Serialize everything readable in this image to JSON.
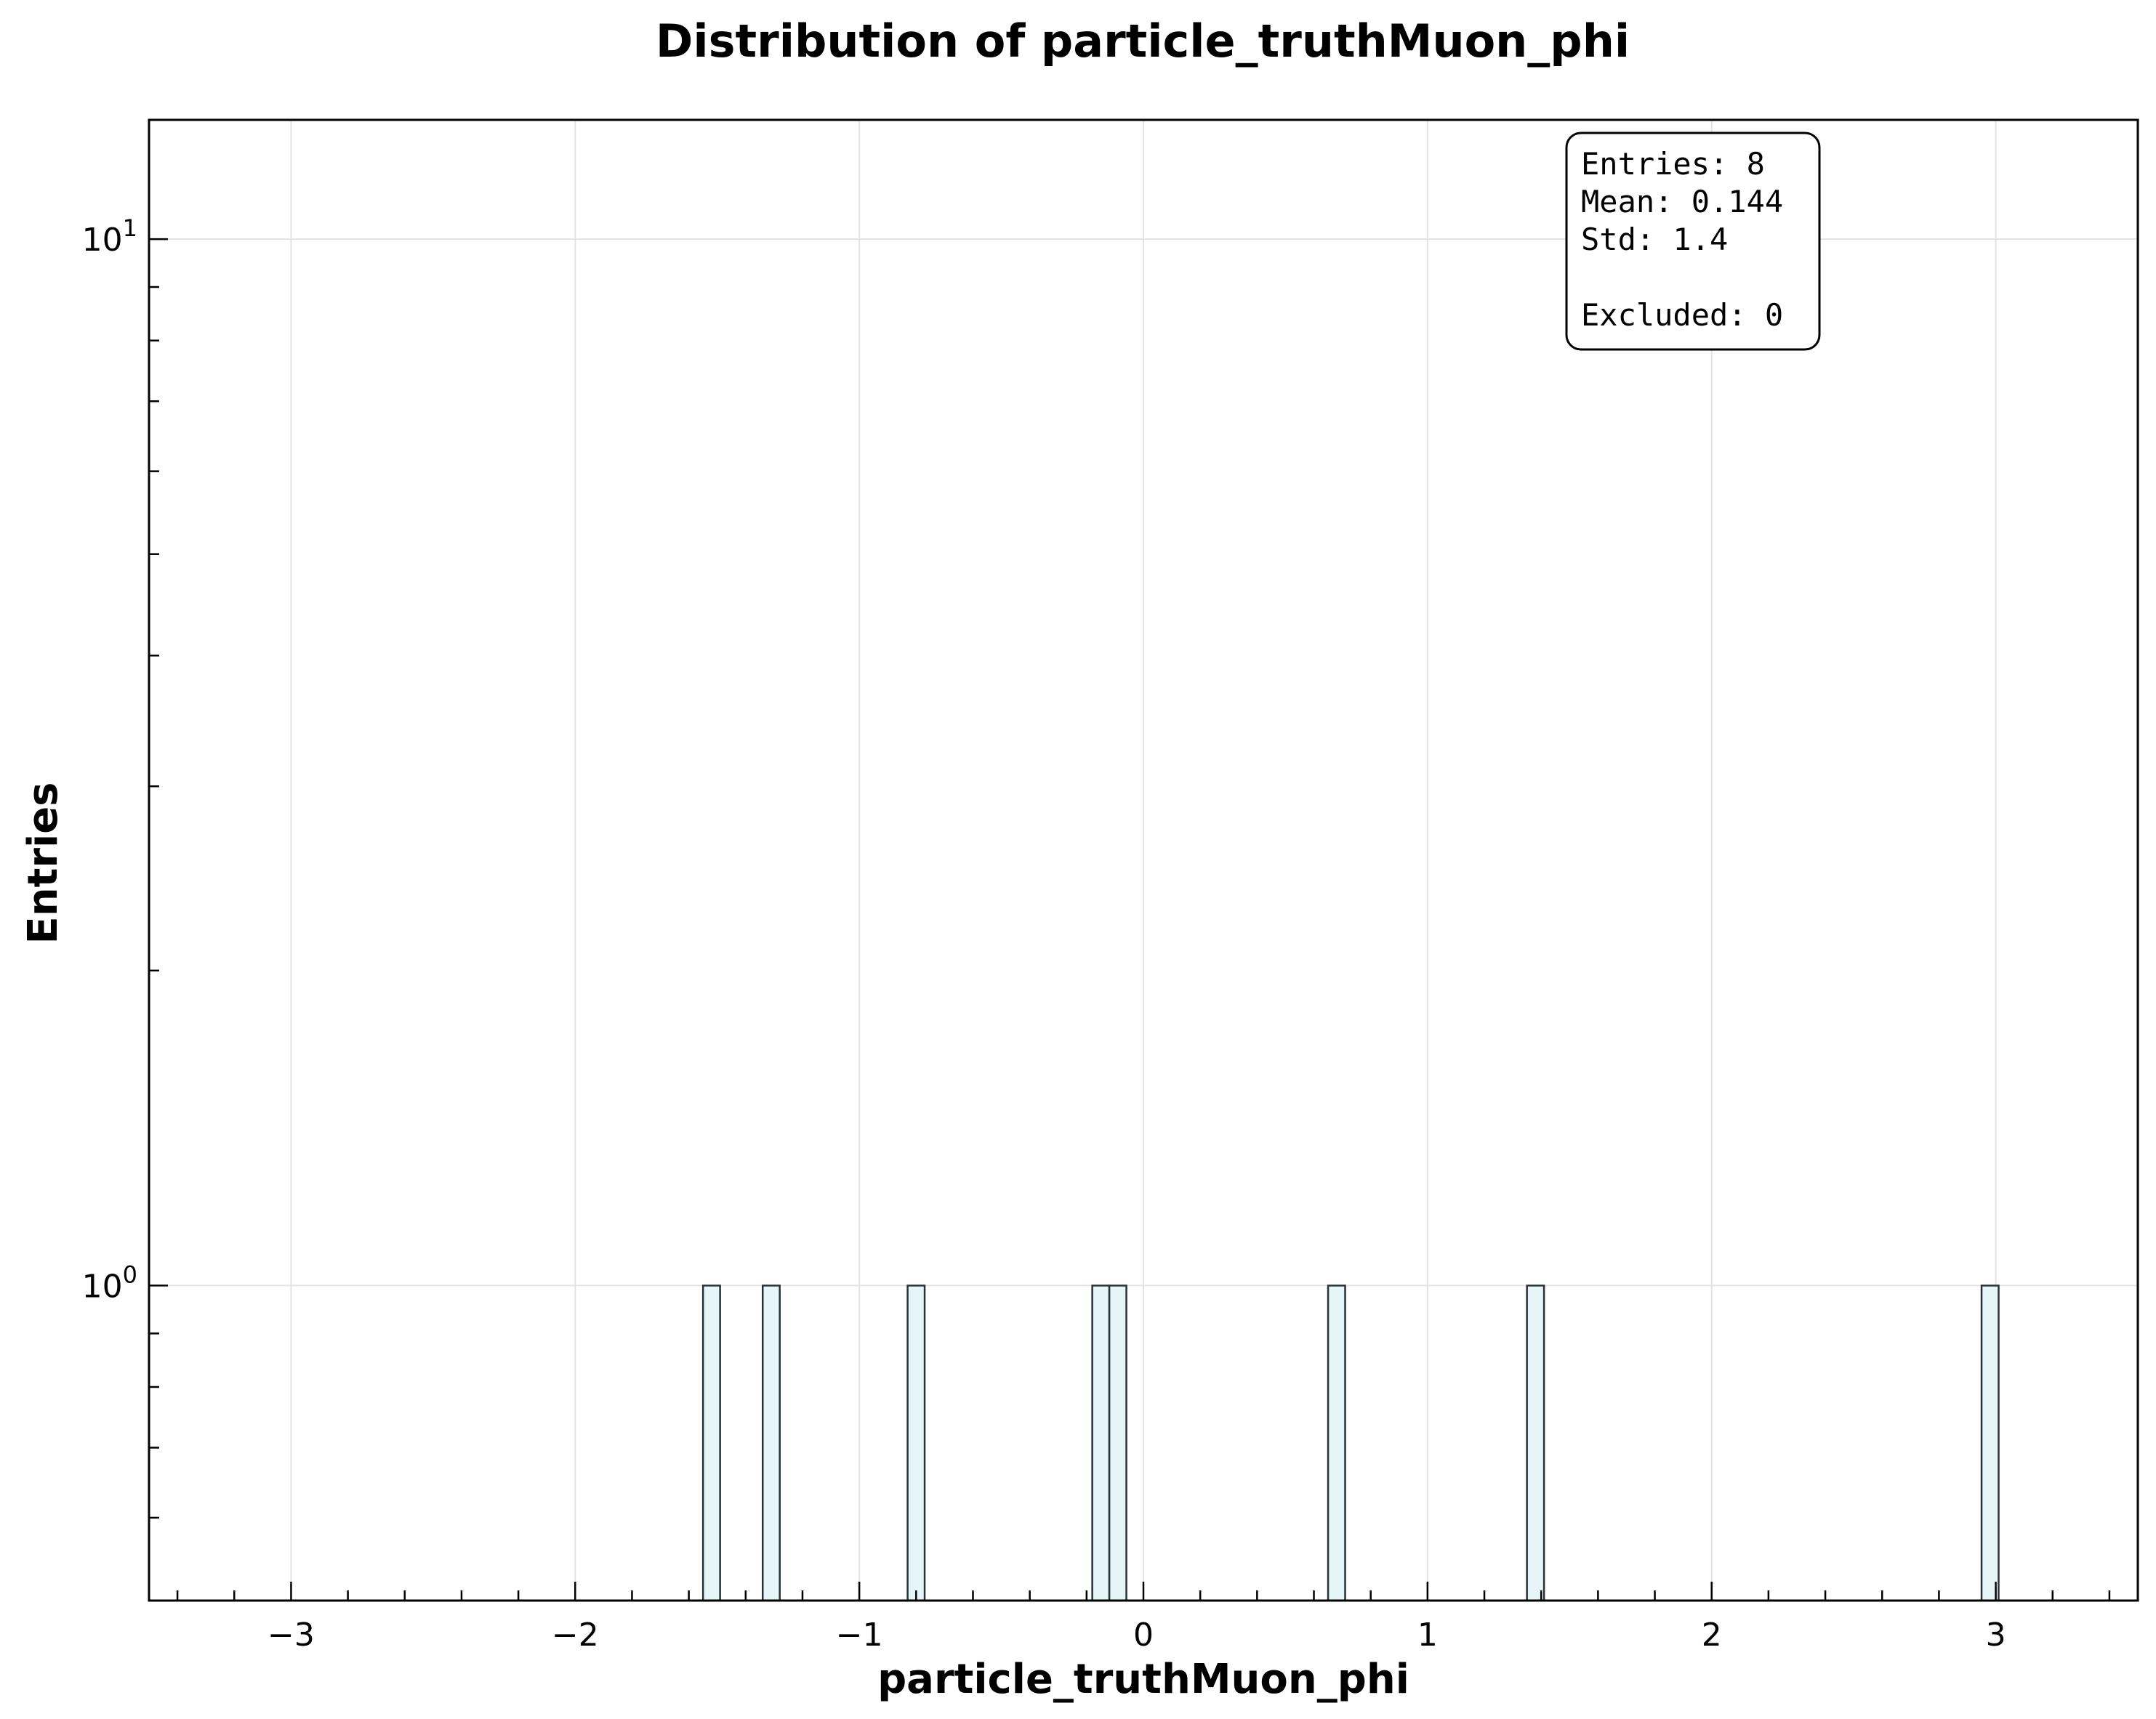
{
  "chart_data": {
    "type": "bar",
    "title": "Distribution of particle_truthMuon_phi",
    "xlabel": "particle_truthMuon_phi",
    "ylabel": "Entries",
    "xlim": [
      -3.5,
      3.5
    ],
    "ylim": [
      0.5,
      13
    ],
    "yscale": "log",
    "grid": true,
    "bin_width": 0.06,
    "x_ticks": [
      -3,
      -2,
      -1,
      0,
      1,
      2,
      3
    ],
    "x_tick_labels": [
      "−3",
      "−2",
      "−1",
      "0",
      "1",
      "2",
      "3"
    ],
    "y_ticks": [
      {
        "value": 1,
        "base": "10",
        "exp": "0"
      },
      {
        "value": 10,
        "base": "10",
        "exp": "1"
      }
    ],
    "bins": [
      {
        "x": -1.52,
        "count": 1
      },
      {
        "x": -1.31,
        "count": 1
      },
      {
        "x": -0.8,
        "count": 1
      },
      {
        "x": -0.15,
        "count": 1
      },
      {
        "x": -0.09,
        "count": 1
      },
      {
        "x": 0.68,
        "count": 1
      },
      {
        "x": 1.38,
        "count": 1
      },
      {
        "x": 2.98,
        "count": 1
      }
    ],
    "stats_box": {
      "lines": [
        "Entries: 8",
        "Mean: 0.144",
        "Std: 1.4",
        "",
        "Excluded: 0"
      ],
      "position": "top-right"
    }
  }
}
